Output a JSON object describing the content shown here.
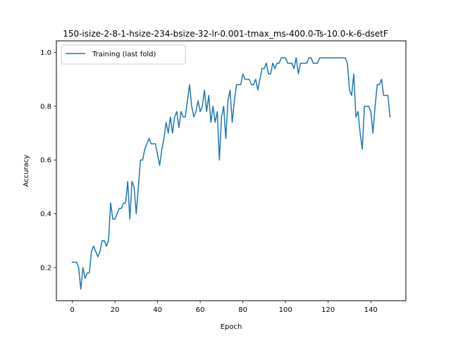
{
  "chart_data": {
    "type": "line",
    "title": "150-isize-2-8-1-hsize-234-bsize-32-lr-0.001-tmax_ms-400.0-Ts-10.0-k-6-dsetF",
    "xlabel": "Epoch",
    "ylabel": "Accuracy",
    "xlim": [
      -7.45,
      156.45
    ],
    "ylim": [
      0.077,
      1.043
    ],
    "xticks": [
      0,
      20,
      40,
      60,
      80,
      100,
      120,
      140
    ],
    "yticks": [
      0.2,
      0.4,
      0.6,
      0.8,
      1.0
    ],
    "ytick_labels": [
      "0.2",
      "0.4",
      "0.6",
      "0.8",
      "1.0"
    ],
    "grid": false,
    "legend_position": "upper-left",
    "series": [
      {
        "name": "Training (last fold)",
        "color": "#1f77b4",
        "x": [
          0,
          1,
          2,
          3,
          4,
          5,
          6,
          7,
          8,
          9,
          10,
          11,
          12,
          13,
          14,
          15,
          16,
          17,
          18,
          19,
          20,
          21,
          22,
          23,
          24,
          25,
          26,
          27,
          28,
          29,
          30,
          31,
          32,
          33,
          34,
          35,
          36,
          37,
          38,
          39,
          40,
          41,
          42,
          43,
          44,
          45,
          46,
          47,
          48,
          49,
          50,
          51,
          52,
          53,
          54,
          55,
          56,
          57,
          58,
          59,
          60,
          61,
          62,
          63,
          64,
          65,
          66,
          67,
          68,
          69,
          70,
          71,
          72,
          73,
          74,
          75,
          76,
          77,
          78,
          79,
          80,
          81,
          82,
          83,
          84,
          85,
          86,
          87,
          88,
          89,
          90,
          91,
          92,
          93,
          94,
          95,
          96,
          97,
          98,
          99,
          100,
          101,
          102,
          103,
          104,
          105,
          106,
          107,
          108,
          109,
          110,
          111,
          112,
          113,
          114,
          115,
          116,
          117,
          118,
          119,
          120,
          121,
          122,
          123,
          124,
          125,
          126,
          127,
          128,
          129,
          130,
          131,
          132,
          133,
          134,
          135,
          136,
          137,
          138,
          139,
          140,
          141,
          142,
          143,
          144,
          145,
          146,
          147,
          148,
          149
        ],
        "values": [
          0.22,
          0.22,
          0.22,
          0.2,
          0.12,
          0.2,
          0.16,
          0.18,
          0.18,
          0.26,
          0.28,
          0.26,
          0.24,
          0.26,
          0.3,
          0.3,
          0.28,
          0.3,
          0.44,
          0.38,
          0.38,
          0.4,
          0.42,
          0.42,
          0.44,
          0.44,
          0.52,
          0.38,
          0.52,
          0.5,
          0.4,
          0.5,
          0.6,
          0.6,
          0.64,
          0.66,
          0.68,
          0.66,
          0.66,
          0.66,
          0.62,
          0.58,
          0.64,
          0.68,
          0.74,
          0.7,
          0.76,
          0.7,
          0.76,
          0.78,
          0.72,
          0.78,
          0.76,
          0.76,
          0.82,
          0.88,
          0.8,
          0.76,
          0.78,
          0.82,
          0.78,
          0.8,
          0.86,
          0.78,
          0.84,
          0.74,
          0.8,
          0.74,
          0.78,
          0.6,
          0.76,
          0.8,
          0.68,
          0.82,
          0.86,
          0.74,
          0.82,
          0.88,
          0.88,
          0.88,
          0.92,
          0.9,
          0.9,
          0.9,
          0.88,
          0.88,
          0.9,
          0.86,
          0.9,
          0.94,
          0.94,
          0.96,
          0.92,
          0.92,
          0.96,
          0.94,
          0.96,
          0.96,
          0.98,
          0.98,
          0.98,
          0.96,
          0.96,
          0.96,
          0.94,
          0.98,
          0.92,
          0.96,
          0.96,
          0.96,
          0.96,
          0.98,
          0.98,
          0.96,
          0.96,
          0.96,
          0.98,
          0.98,
          0.98,
          0.98,
          0.98,
          0.98,
          0.98,
          0.98,
          0.98,
          0.98,
          0.98,
          0.98,
          0.98,
          0.96,
          0.86,
          0.84,
          0.92,
          0.76,
          0.78,
          0.7,
          0.64,
          0.8,
          0.8,
          0.8,
          0.78,
          0.7,
          0.8,
          0.88,
          0.88,
          0.9,
          0.84,
          0.84,
          0.84,
          0.76
        ]
      }
    ]
  }
}
